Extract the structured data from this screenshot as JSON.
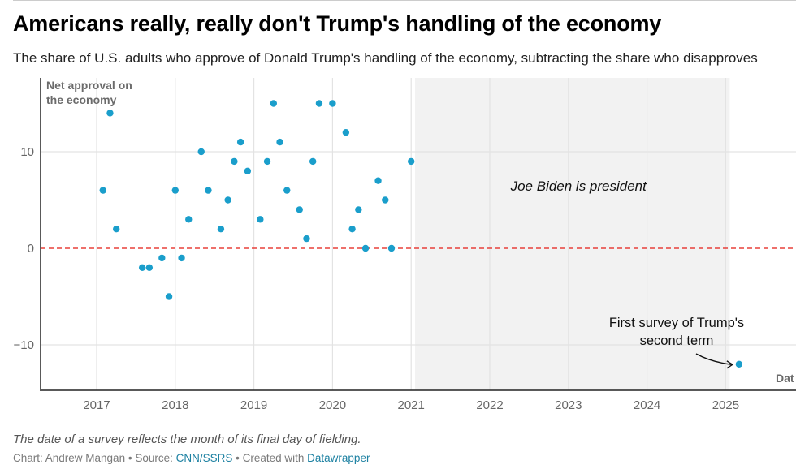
{
  "header": {
    "title": "Americans really, really don't Trump's handling of the economy",
    "subtitle": "The share of U.S. adults who approve of Donald Trump's handling of the economy, subtracting the share who disapproves"
  },
  "footer": {
    "note": "The date of a survey reflects the month of its final day of fielding.",
    "chart_by": "Chart: Andrew Mangan",
    "separator": " • ",
    "source_label": "Source: ",
    "source_link": "CNN/SSRS",
    "created_label": "Created with ",
    "created_link": "Datawrapper"
  },
  "chart_data": {
    "type": "scatter",
    "title": "Americans really, really don't Trump's handling of the economy",
    "ylabel": "Net approval on the economy",
    "xlabel": "",
    "xlim": [
      2016.3,
      2025.9
    ],
    "ylim": [
      -14.5,
      17.5
    ],
    "xticks": [
      2017,
      2018,
      2019,
      2020,
      2021,
      2022,
      2023,
      2024,
      2025
    ],
    "yticks": [
      -10,
      0,
      10
    ],
    "ytick_labels": [
      "−10",
      "0",
      "10"
    ],
    "grid": true,
    "reference_line": {
      "y": 0,
      "style": "dashed",
      "color": "#e8403a"
    },
    "shaded_region": {
      "x_start": 2021.05,
      "x_end": 2025.0,
      "label": "Joe Biden is president",
      "color": "#f2f2f2"
    },
    "point_color": "#1a9ecb",
    "annotations": [
      {
        "text_lines": [
          "First survey of Trump's",
          "second term"
        ],
        "points_to": {
          "x": 2025.17,
          "y": -12
        }
      }
    ],
    "clipped_label": "Dat",
    "points": [
      {
        "x": 2017.08,
        "y": 6
      },
      {
        "x": 2017.17,
        "y": 14
      },
      {
        "x": 2017.25,
        "y": 2
      },
      {
        "x": 2017.58,
        "y": -2
      },
      {
        "x": 2017.67,
        "y": -2
      },
      {
        "x": 2017.83,
        "y": -1
      },
      {
        "x": 2017.92,
        "y": -5
      },
      {
        "x": 2018.0,
        "y": 6
      },
      {
        "x": 2018.08,
        "y": -1
      },
      {
        "x": 2018.17,
        "y": 3
      },
      {
        "x": 2018.33,
        "y": 10
      },
      {
        "x": 2018.42,
        "y": 6
      },
      {
        "x": 2018.58,
        "y": 2
      },
      {
        "x": 2018.67,
        "y": 5
      },
      {
        "x": 2018.75,
        "y": 9
      },
      {
        "x": 2018.83,
        "y": 11
      },
      {
        "x": 2018.92,
        "y": 8
      },
      {
        "x": 2019.08,
        "y": 3
      },
      {
        "x": 2019.17,
        "y": 9
      },
      {
        "x": 2019.25,
        "y": 15
      },
      {
        "x": 2019.33,
        "y": 11
      },
      {
        "x": 2019.42,
        "y": 6
      },
      {
        "x": 2019.58,
        "y": 4
      },
      {
        "x": 2019.67,
        "y": 1
      },
      {
        "x": 2019.75,
        "y": 9
      },
      {
        "x": 2019.83,
        "y": 15
      },
      {
        "x": 2020.0,
        "y": 15
      },
      {
        "x": 2020.17,
        "y": 12
      },
      {
        "x": 2020.25,
        "y": 2
      },
      {
        "x": 2020.33,
        "y": 4
      },
      {
        "x": 2020.42,
        "y": 0
      },
      {
        "x": 2020.58,
        "y": 7
      },
      {
        "x": 2020.67,
        "y": 5
      },
      {
        "x": 2020.75,
        "y": 0
      },
      {
        "x": 2021.0,
        "y": 9
      },
      {
        "x": 2025.17,
        "y": -12
      }
    ]
  }
}
